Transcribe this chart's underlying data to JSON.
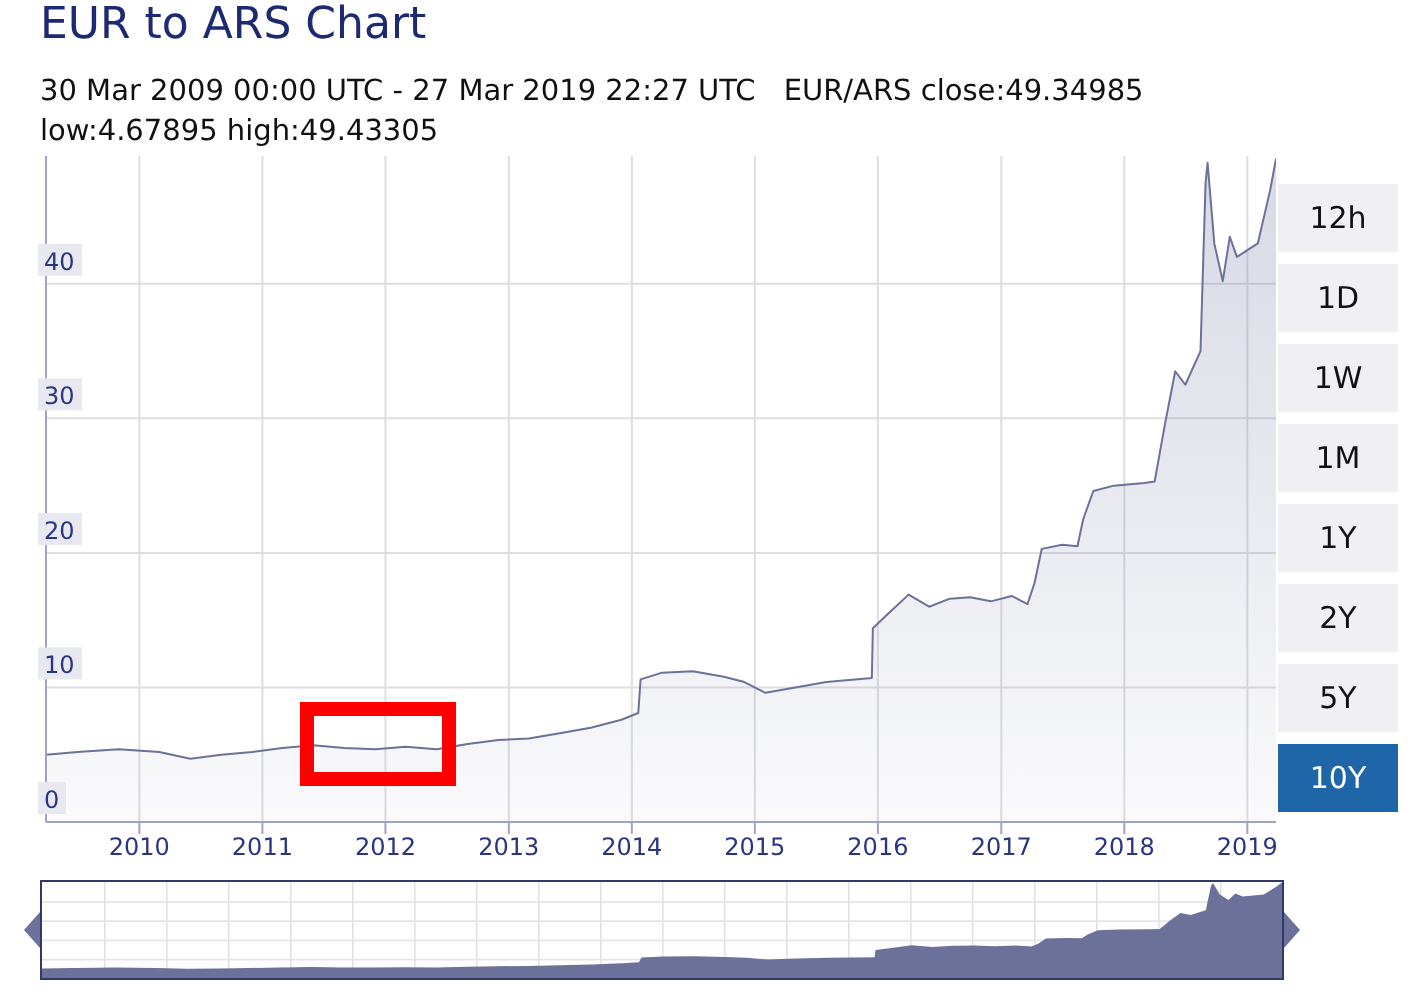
{
  "chart_data": [
    {
      "type": "area",
      "title": "EUR to ARS Chart",
      "subtitle": "30 Mar 2009 00:00 UTC - 27 Mar 2019 22:27 UTC",
      "annotations": [
        "EUR/ARS close:49.34985",
        "low:4.67895 high:49.43305"
      ],
      "x": [
        "2009-03-30",
        "2009-07",
        "2009-11",
        "2010-03",
        "2010-06",
        "2010-09",
        "2010-12",
        "2011-03",
        "2011-06",
        "2011-09",
        "2011-12",
        "2012-03",
        "2012-06",
        "2012-09",
        "2012-12",
        "2013-03",
        "2013-06",
        "2013-09",
        "2013-12",
        "2014-01-20",
        "2014-01-27",
        "2014-04",
        "2014-07",
        "2014-10",
        "2014-12",
        "2015-02",
        "2015-05",
        "2015-08",
        "2015-12-14",
        "2015-12-17",
        "2016-02",
        "2016-04",
        "2016-06",
        "2016-08",
        "2016-10",
        "2016-12",
        "2017-02",
        "2017-03-20",
        "2017-04-10",
        "2017-05-01",
        "2017-07",
        "2017-08-15",
        "2017-09",
        "2017-10",
        "2017-12",
        "2018-03",
        "2018-04-01",
        "2018-05",
        "2018-06",
        "2018-07",
        "2018-08-15",
        "2018-08-30",
        "2018-09-05",
        "2018-09-25",
        "2018-10-20",
        "2018-11-10",
        "2018-12",
        "2019-01",
        "2019-02",
        "2019-03-10",
        "2019-03-27"
      ],
      "values": [
        5.0,
        5.2,
        5.4,
        5.2,
        4.7,
        5.0,
        5.2,
        5.5,
        5.7,
        5.5,
        5.4,
        5.6,
        5.4,
        5.8,
        6.1,
        6.2,
        6.6,
        7.0,
        7.6,
        8.1,
        10.6,
        11.1,
        11.2,
        10.8,
        10.4,
        9.6,
        10.0,
        10.4,
        10.7,
        14.4,
        15.5,
        16.9,
        16.0,
        16.6,
        16.7,
        16.4,
        16.8,
        16.2,
        17.8,
        20.3,
        20.6,
        20.5,
        22.5,
        24.6,
        25.0,
        25.2,
        25.3,
        29.5,
        33.5,
        32.5,
        35.0,
        47.5,
        49.0,
        43.0,
        40.2,
        43.5,
        42.0,
        42.5,
        43.0,
        47.0,
        49.3
      ],
      "color": "#6b7199",
      "xlim": [
        "2009-03-30",
        "2019-03-27"
      ],
      "xticks": [
        "2010",
        "2011",
        "2012",
        "2013",
        "2014",
        "2015",
        "2016",
        "2017",
        "2018",
        "2019"
      ],
      "ylim": [
        0,
        49.5
      ],
      "yticks": [
        0,
        10,
        20,
        30,
        40
      ],
      "grid": true
    },
    {
      "type": "other",
      "annotations": [
        "12h",
        "1D",
        "1W",
        "1M",
        "1Y",
        "2Y",
        "5Y",
        "10Y"
      ]
    }
  ]
}
